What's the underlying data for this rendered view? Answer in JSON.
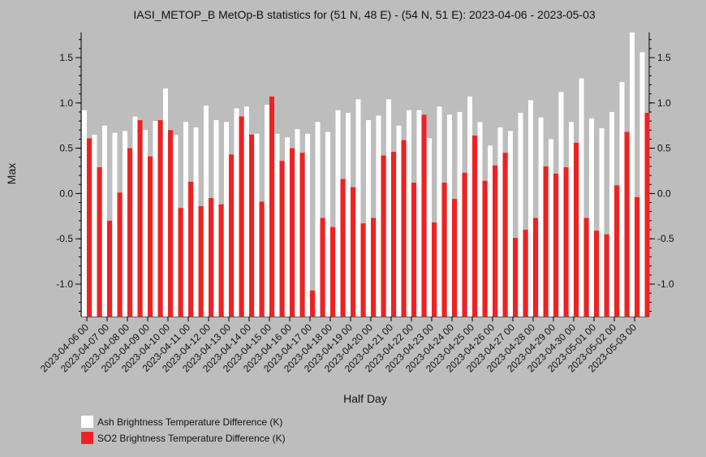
{
  "chart_data": {
    "type": "bar",
    "title": "IASI_METOP_B MetOp-B statistics for (51 N, 48 E) - (54 N, 51 E): 2023-04-06 - 2023-05-03",
    "xlabel": "Half Day",
    "ylabel": "Max",
    "ylim": [
      -1.35,
      1.78
    ],
    "yticks": [
      1.5,
      1.0,
      0.5,
      0.0,
      -0.5,
      -1.0
    ],
    "ytick_labels": [
      "1.5",
      "1.0",
      "0.5",
      "0.0",
      "-0.5",
      "-1.0"
    ],
    "xtick_labels": [
      "2023-04-06 00",
      "2023-04-07 00",
      "2023-04-08 00",
      "2023-04-09 00",
      "2023-04-10 00",
      "2023-04-11 00",
      "2023-04-12 00",
      "2023-04-13 00",
      "2023-04-14 00",
      "2023-04-15 00",
      "2023-04-16 00",
      "2023-04-17 00",
      "2023-04-18 00",
      "2023-04-19 00",
      "2023-04-20 00",
      "2023-04-21 00",
      "2023-04-22 00",
      "2023-04-23 00",
      "2023-04-24 00",
      "2023-04-25 00",
      "2023-04-26 00",
      "2023-04-27 00",
      "2023-04-28 00",
      "2023-04-29 00",
      "2023-04-30 00",
      "2023-05-01 00",
      "2023-05-02 00",
      "2023-05-03 00"
    ],
    "grid": false,
    "legend_position": "bottom-left",
    "series": [
      {
        "name": "Ash Brightness Temperature Difference (K)",
        "color": "#ffffff",
        "values": [
          0.92,
          0.65,
          0.75,
          0.67,
          0.69,
          0.85,
          0.7,
          0.8,
          1.16,
          0.65,
          0.79,
          0.73,
          0.97,
          0.81,
          0.79,
          0.94,
          0.96,
          0.66,
          0.98,
          0.66,
          0.62,
          0.71,
          0.66,
          0.79,
          0.68,
          0.92,
          0.89,
          1.04,
          0.81,
          0.86,
          1.04,
          0.75,
          0.92,
          0.92,
          0.61,
          0.96,
          0.87,
          0.9,
          1.07,
          0.79,
          0.53,
          0.73,
          0.69,
          0.89,
          1.03,
          0.84,
          0.6,
          1.12,
          0.79,
          1.27,
          0.83,
          0.72,
          0.9,
          1.23,
          1.78,
          1.56
        ]
      },
      {
        "name": "SO2 Brightness Temperature Difference (K)",
        "color": "#ee2222",
        "values": [
          0.61,
          0.29,
          -0.3,
          0.01,
          0.5,
          0.81,
          0.41,
          0.81,
          0.7,
          -0.16,
          0.13,
          -0.14,
          -0.05,
          -0.12,
          0.43,
          0.85,
          0.65,
          -0.09,
          1.07,
          0.36,
          0.5,
          0.45,
          -1.07,
          -0.27,
          -0.37,
          0.16,
          0.07,
          -0.33,
          -0.27,
          0.42,
          0.46,
          0.59,
          0.12,
          0.87,
          -0.32,
          0.12,
          -0.06,
          0.23,
          0.64,
          0.14,
          0.31,
          0.45,
          -0.49,
          -0.4,
          -0.27,
          0.3,
          0.22,
          0.29,
          0.56,
          -0.27,
          -0.41,
          -0.45,
          0.09,
          0.68,
          -0.04,
          0.89
        ]
      }
    ]
  }
}
